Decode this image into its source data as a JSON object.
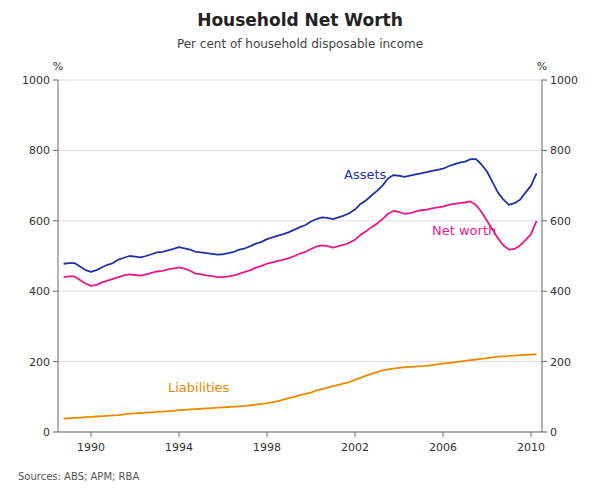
{
  "chart_data": {
    "type": "line",
    "title": "Household Net Worth",
    "subtitle": "Per cent of household disposable income",
    "source": "Sources: ABS; APM; RBA",
    "y_label": "%",
    "y2_label": "%",
    "x": [
      1988.75,
      1989.0,
      1989.25,
      1989.5,
      1989.75,
      1990.0,
      1990.25,
      1990.5,
      1990.75,
      1991.0,
      1991.25,
      1991.5,
      1991.75,
      1992.0,
      1992.25,
      1992.5,
      1992.75,
      1993.0,
      1993.25,
      1993.5,
      1993.75,
      1994.0,
      1994.25,
      1994.5,
      1994.75,
      1995.0,
      1995.25,
      1995.5,
      1995.75,
      1996.0,
      1996.25,
      1996.5,
      1996.75,
      1997.0,
      1997.25,
      1997.5,
      1997.75,
      1998.0,
      1998.25,
      1998.5,
      1998.75,
      1999.0,
      1999.25,
      1999.5,
      1999.75,
      2000.0,
      2000.25,
      2000.5,
      2000.75,
      2001.0,
      2001.25,
      2001.5,
      2001.75,
      2002.0,
      2002.25,
      2002.5,
      2002.75,
      2003.0,
      2003.25,
      2003.5,
      2003.75,
      2004.0,
      2004.25,
      2004.5,
      2004.75,
      2005.0,
      2005.25,
      2005.5,
      2005.75,
      2006.0,
      2006.25,
      2006.5,
      2006.75,
      2007.0,
      2007.25,
      2007.5,
      2007.75,
      2008.0,
      2008.25,
      2008.5,
      2008.75,
      2009.0,
      2009.25,
      2009.5,
      2009.75,
      2010.0,
      2010.25
    ],
    "series": [
      {
        "color": "#2232a0",
        "values": [
          478,
          480,
          480,
          470,
          460,
          455,
          460,
          468,
          475,
          480,
          490,
          495,
          500,
          498,
          496,
          500,
          505,
          510,
          512,
          516,
          520,
          525,
          522,
          518,
          512,
          510,
          508,
          506,
          504,
          505,
          508,
          512,
          518,
          522,
          528,
          535,
          540,
          548,
          553,
          558,
          562,
          568,
          575,
          582,
          588,
          598,
          605,
          610,
          608,
          605,
          610,
          615,
          622,
          632,
          648,
          658,
          672,
          685,
          700,
          720,
          730,
          728,
          725,
          728,
          732,
          735,
          738,
          742,
          745,
          748,
          755,
          760,
          765,
          768,
          775,
          775,
          760,
          740,
          710,
          680,
          660,
          645,
          650,
          660,
          680,
          700,
          735
        ]
      },
      {
        "color": "#e8198b",
        "values": [
          440,
          442,
          442,
          432,
          422,
          415,
          418,
          425,
          430,
          435,
          440,
          445,
          448,
          446,
          444,
          448,
          452,
          456,
          458,
          462,
          465,
          468,
          464,
          458,
          450,
          448,
          445,
          443,
          440,
          440,
          442,
          445,
          450,
          455,
          460,
          467,
          472,
          478,
          482,
          486,
          490,
          494,
          500,
          507,
          512,
          520,
          527,
          530,
          528,
          524,
          528,
          532,
          538,
          546,
          560,
          570,
          582,
          592,
          605,
          620,
          628,
          625,
          620,
          622,
          626,
          630,
          632,
          635,
          638,
          640,
          645,
          648,
          650,
          652,
          655,
          645,
          625,
          600,
          575,
          550,
          530,
          518,
          520,
          530,
          545,
          562,
          600
        ]
      },
      {
        "color": "#e88a00",
        "values": [
          38,
          39,
          40,
          41,
          42,
          43,
          44,
          45,
          46,
          47,
          48,
          50,
          52,
          53,
          54,
          55,
          56,
          57,
          58,
          59,
          60,
          62,
          63,
          64,
          65,
          66,
          67,
          68,
          69,
          70,
          71,
          72,
          73,
          74,
          76,
          78,
          80,
          82,
          85,
          88,
          92,
          96,
          100,
          105,
          108,
          112,
          118,
          122,
          126,
          130,
          134,
          138,
          142,
          148,
          154,
          160,
          165,
          170,
          175,
          178,
          180,
          182,
          184,
          185,
          186,
          187,
          188,
          190,
          192,
          194,
          196,
          198,
          200,
          202,
          204,
          206,
          208,
          210,
          212,
          214,
          215,
          216,
          217,
          218,
          219,
          220,
          221
        ]
      }
    ],
    "annotations": [
      {
        "text": "Assets",
        "x": 2001.5,
        "y": 720,
        "color": "#2232a0"
      },
      {
        "text": "Net worth",
        "x": 2005.5,
        "y": 560,
        "color": "#e8198b"
      },
      {
        "text": "Liabilities",
        "x": 1993.5,
        "y": 115,
        "color": "#e88a00"
      }
    ],
    "xlim": [
      1988.5,
      2010.5
    ],
    "xticks": [
      1990,
      1994,
      1998,
      2002,
      2006,
      2010
    ],
    "ylim": [
      0,
      1000
    ],
    "yticks": [
      0,
      200,
      400,
      600,
      800,
      1000
    ],
    "y2lim": [
      0,
      1000
    ],
    "y2ticks": [
      0,
      200,
      400,
      600,
      800,
      1000
    ],
    "grid": true
  }
}
